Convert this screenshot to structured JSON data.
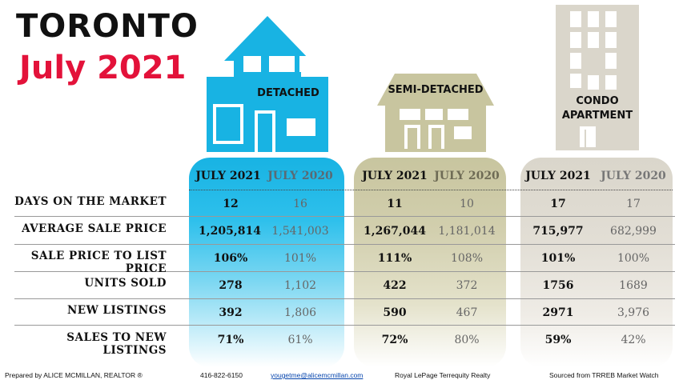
{
  "title": {
    "city": "TORONTO",
    "period": "July 2021"
  },
  "property_types": [
    {
      "name": "DETACHED",
      "color": "#18b3e3"
    },
    {
      "name": "SEMI-DETACHED",
      "color": "#c8c59f"
    },
    {
      "name_line1": "CONDO",
      "name_line2": "APARTMENT",
      "color": "#dad6cb"
    }
  ],
  "columns": [
    "JULY 2021",
    "JULY 2020"
  ],
  "rows": [
    {
      "label": "DAYS ON THE MARKET",
      "detached": [
        "12",
        "16"
      ],
      "semi": [
        "11",
        "10"
      ],
      "condo": [
        "17",
        "17"
      ]
    },
    {
      "label": "AVERAGE SALE PRICE",
      "detached": [
        "1,205,814",
        "1,541,003"
      ],
      "semi": [
        "1,267,044",
        "1,181,014"
      ],
      "condo": [
        "715,977",
        "682,999"
      ]
    },
    {
      "label": "SALE PRICE TO LIST PRICE",
      "detached": [
        "106%",
        "101%"
      ],
      "semi": [
        "111%",
        "108%"
      ],
      "condo": [
        "101%",
        "100%"
      ]
    },
    {
      "label": "UNITS SOLD",
      "detached": [
        "278",
        "1,102"
      ],
      "semi": [
        "422",
        "372"
      ],
      "condo": [
        "1756",
        "1689"
      ]
    },
    {
      "label": "NEW LISTINGS",
      "detached": [
        "392",
        "1,806"
      ],
      "semi": [
        "590",
        "467"
      ],
      "condo": [
        "2971",
        "3,976"
      ]
    },
    {
      "label": "SALES TO NEW LISTINGS",
      "detached": [
        "71%",
        "61%"
      ],
      "semi": [
        "72%",
        "80%"
      ],
      "condo": [
        "59%",
        "42%"
      ]
    }
  ],
  "footer": {
    "prepared_by": "Prepared by ALICE MCMILLAN, REALTOR ®",
    "phone": "416-822-6150",
    "email": "yougetme@alicemcmillan.com",
    "brokerage": "Royal LePage Terrequity Realty",
    "source": "Sourced from TRREB Market Watch"
  }
}
